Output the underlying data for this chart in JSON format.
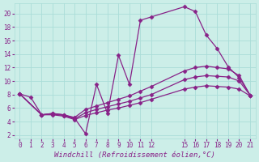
{
  "xlabel": "Windchill (Refroidissement éolien,°C)",
  "background_color": "#cceee8",
  "grid_color": "#aaddd8",
  "line_color": "#882288",
  "xlim": [
    -0.5,
    21.5
  ],
  "ylim": [
    1.5,
    21.5
  ],
  "xticks": [
    0,
    1,
    2,
    3,
    4,
    5,
    6,
    7,
    8,
    9,
    10,
    11,
    12,
    15,
    16,
    17,
    18,
    19,
    20,
    21
  ],
  "yticks": [
    2,
    4,
    6,
    8,
    10,
    12,
    14,
    16,
    18,
    20
  ],
  "lines": [
    {
      "x": [
        0,
        1,
        2,
        3,
        4,
        5,
        6,
        7,
        8,
        9,
        10,
        11,
        12,
        15,
        16,
        17,
        18,
        19,
        20,
        21
      ],
      "y": [
        8.1,
        7.6,
        5.0,
        5.2,
        5.0,
        4.5,
        2.2,
        9.5,
        5.2,
        13.8,
        9.5,
        19.0,
        19.5,
        21.0,
        20.3,
        16.8,
        14.8,
        12.1,
        10.5,
        7.9
      ]
    },
    {
      "x": [
        0,
        2,
        3,
        4,
        5,
        6,
        7,
        8,
        9,
        10,
        11,
        12,
        15,
        16,
        17,
        18,
        19,
        20,
        21
      ],
      "y": [
        8.1,
        5.0,
        5.2,
        5.0,
        4.6,
        5.8,
        6.3,
        6.8,
        7.3,
        7.8,
        8.5,
        9.2,
        11.5,
        12.0,
        12.2,
        12.0,
        11.8,
        10.8,
        7.9
      ]
    },
    {
      "x": [
        0,
        2,
        3,
        4,
        5,
        6,
        7,
        8,
        9,
        10,
        11,
        12,
        15,
        16,
        17,
        18,
        19,
        20,
        21
      ],
      "y": [
        8.1,
        5.0,
        5.1,
        4.9,
        4.4,
        5.3,
        5.8,
        6.2,
        6.6,
        7.0,
        7.5,
        8.0,
        10.2,
        10.6,
        10.8,
        10.7,
        10.6,
        10.0,
        7.9
      ]
    },
    {
      "x": [
        0,
        2,
        3,
        4,
        5,
        6,
        7,
        8,
        9,
        10,
        11,
        12,
        15,
        16,
        17,
        18,
        19,
        20,
        21
      ],
      "y": [
        8.1,
        5.0,
        5.0,
        4.8,
        4.3,
        4.9,
        5.3,
        5.7,
        6.0,
        6.4,
        6.8,
        7.3,
        8.8,
        9.1,
        9.3,
        9.2,
        9.1,
        8.8,
        7.8
      ]
    }
  ],
  "marker": "D",
  "markersize": 2.5,
  "linewidth": 0.9,
  "tick_fontsize": 5.5,
  "label_fontsize": 6.5
}
